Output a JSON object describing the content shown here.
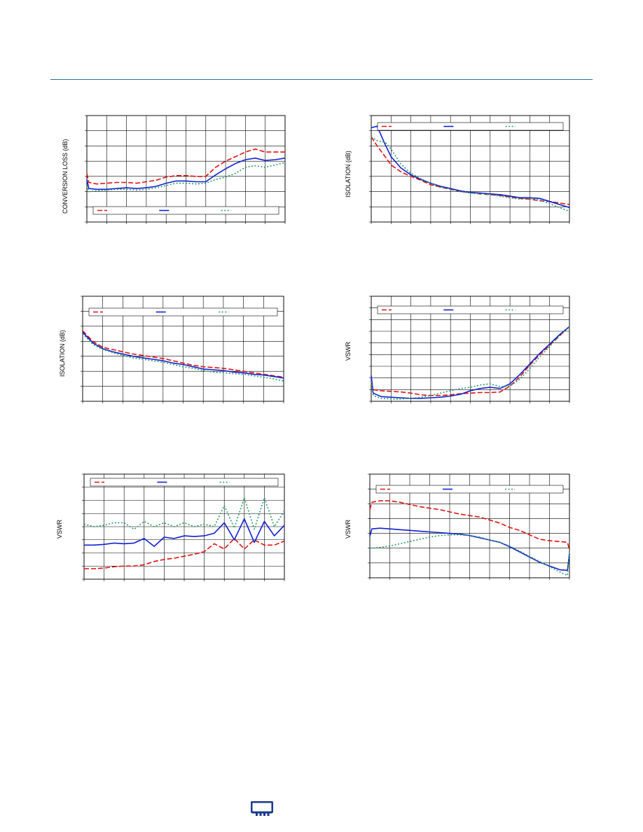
{
  "colors": {
    "rule": "#2b6e8f",
    "red": "#e01010",
    "blue": "#1020d0",
    "green": "#2a9a6a",
    "grid": "#000000",
    "logo": "#1a3a8c"
  },
  "footer": {
    "logo_icon": "chip-logo-icon"
  },
  "chart_data": [
    {
      "type": "line",
      "title": "",
      "ylabel": "CONVERSION LOSS (dB)",
      "xlabel": "",
      "xlim": [
        0,
        10
      ],
      "ylim": [
        0,
        7
      ],
      "grid": true,
      "legend_position": "bottom",
      "series": [
        {
          "style": "dash-red",
          "x": [
            0,
            0.1,
            0.5,
            1,
            1.5,
            2,
            2.5,
            3,
            3.5,
            4,
            4.5,
            5,
            5.5,
            6,
            6.5,
            7,
            7.5,
            8,
            8.5,
            9,
            9.5,
            10
          ],
          "y": [
            3.2,
            2.6,
            2.5,
            2.55,
            2.6,
            2.6,
            2.55,
            2.65,
            2.75,
            2.95,
            3.05,
            3.05,
            3.0,
            3.0,
            3.6,
            4.0,
            4.3,
            4.6,
            4.8,
            4.6,
            4.6,
            4.6
          ]
        },
        {
          "style": "solid-blue",
          "x": [
            0,
            0.1,
            0.5,
            1,
            1.5,
            2,
            2.5,
            3,
            3.5,
            4,
            4.5,
            5,
            5.5,
            6,
            6.5,
            7,
            7.5,
            8,
            8.5,
            9,
            9.5,
            10
          ],
          "y": [
            2.8,
            2.2,
            2.15,
            2.15,
            2.2,
            2.25,
            2.2,
            2.25,
            2.35,
            2.55,
            2.7,
            2.7,
            2.65,
            2.65,
            3.1,
            3.5,
            3.85,
            4.1,
            4.2,
            4.05,
            4.1,
            4.2
          ]
        },
        {
          "style": "dot-green",
          "x": [
            0,
            0.1,
            0.5,
            1,
            1.5,
            2,
            2.5,
            3,
            3.5,
            4,
            4.5,
            5,
            5.5,
            6,
            6.5,
            7,
            7.5,
            8,
            8.5,
            9,
            9.5,
            10
          ],
          "y": [
            2.4,
            2.0,
            2.05,
            2.1,
            2.15,
            2.15,
            2.1,
            2.15,
            2.25,
            2.4,
            2.55,
            2.55,
            2.5,
            2.55,
            2.8,
            2.95,
            3.2,
            3.6,
            3.7,
            3.6,
            3.75,
            3.9
          ]
        }
      ]
    },
    {
      "type": "line",
      "title": "",
      "ylabel": "ISOLATION (dB)",
      "xlabel": "",
      "xlim": [
        0,
        10
      ],
      "ylim": [
        0,
        7
      ],
      "grid": true,
      "legend_position": "top",
      "series": [
        {
          "style": "dash-red",
          "x": [
            0,
            0.3,
            0.7,
            1,
            1.5,
            2,
            2.5,
            3,
            3.5,
            4,
            4.5,
            5,
            5.5,
            6,
            6.5,
            7,
            7.5,
            8,
            8.5,
            9,
            9.5,
            10
          ],
          "y": [
            5.6,
            5.0,
            4.3,
            3.75,
            3.3,
            3.0,
            2.75,
            2.45,
            2.3,
            2.15,
            2.0,
            1.95,
            1.85,
            1.8,
            1.75,
            1.65,
            1.55,
            1.5,
            1.4,
            1.35,
            1.25,
            1.15
          ]
        },
        {
          "style": "solid-blue",
          "x": [
            0,
            0.3,
            0.7,
            1,
            1.5,
            2,
            2.5,
            3,
            3.5,
            4,
            4.5,
            5,
            5.5,
            6,
            6.5,
            7,
            7.5,
            8,
            8.5,
            9,
            9.5,
            10
          ],
          "y": [
            6.2,
            6.3,
            5.1,
            4.3,
            3.55,
            3.1,
            2.8,
            2.55,
            2.35,
            2.2,
            2.05,
            1.95,
            1.9,
            1.85,
            1.8,
            1.7,
            1.6,
            1.6,
            1.55,
            1.35,
            1.15,
            0.95
          ]
        },
        {
          "style": "dot-green",
          "x": [
            0,
            0.3,
            0.7,
            1,
            1.5,
            2,
            2.5,
            3,
            3.5,
            4,
            4.5,
            5,
            5.5,
            6,
            6.5,
            7,
            7.5,
            8,
            8.5,
            9,
            9.5,
            10
          ],
          "y": [
            5.6,
            5.35,
            5.25,
            4.8,
            3.8,
            3.2,
            2.85,
            2.55,
            2.3,
            2.15,
            2.0,
            1.9,
            1.85,
            1.8,
            1.7,
            1.6,
            1.5,
            1.55,
            1.45,
            1.2,
            0.95,
            0.7
          ]
        }
      ]
    },
    {
      "type": "line",
      "title": "",
      "ylabel": "ISOLATION (dB)",
      "xlabel": "",
      "xlim": [
        0,
        10
      ],
      "ylim": [
        0,
        7
      ],
      "grid": true,
      "legend_position": "top",
      "series": [
        {
          "style": "dash-red",
          "x": [
            0,
            0.5,
            1,
            1.5,
            2,
            2.5,
            3,
            3.5,
            4,
            4.5,
            5,
            5.5,
            6,
            6.5,
            7,
            7.5,
            8,
            8.5,
            9,
            9.5,
            10
          ],
          "y": [
            4.7,
            4.0,
            3.6,
            3.45,
            3.3,
            3.15,
            3.05,
            2.95,
            2.85,
            2.7,
            2.55,
            2.4,
            2.3,
            2.25,
            2.2,
            2.1,
            2.0,
            1.9,
            1.8,
            1.7,
            1.6
          ]
        },
        {
          "style": "solid-blue",
          "x": [
            0,
            0.5,
            1,
            1.5,
            2,
            2.5,
            3,
            3.5,
            4,
            4.5,
            5,
            5.5,
            6,
            6.5,
            7,
            7.5,
            8,
            8.5,
            9,
            9.5,
            10
          ],
          "y": [
            4.6,
            3.9,
            3.5,
            3.3,
            3.15,
            3.0,
            2.9,
            2.8,
            2.7,
            2.55,
            2.45,
            2.3,
            2.15,
            2.1,
            2.05,
            1.95,
            1.9,
            1.8,
            1.75,
            1.65,
            1.55
          ]
        },
        {
          "style": "dot-green",
          "x": [
            0,
            0.5,
            1,
            1.5,
            2,
            2.5,
            3,
            3.5,
            4,
            4.5,
            5,
            5.5,
            6,
            6.5,
            7,
            7.5,
            8,
            8.5,
            9,
            9.5,
            10
          ],
          "y": [
            4.5,
            3.8,
            3.45,
            3.25,
            3.05,
            2.9,
            2.8,
            2.7,
            2.6,
            2.45,
            2.3,
            2.2,
            2.05,
            1.95,
            1.9,
            1.85,
            1.8,
            1.7,
            1.6,
            1.5,
            1.35
          ]
        }
      ]
    },
    {
      "type": "line",
      "title": "",
      "ylabel": "VSWR",
      "xlabel": "",
      "xlim": [
        0,
        10
      ],
      "ylim": [
        0,
        9
      ],
      "grid": true,
      "legend_position": "top",
      "series": [
        {
          "style": "dash-red",
          "x": [
            0,
            0.1,
            0.5,
            1,
            1.5,
            2,
            2.5,
            3,
            3.5,
            4,
            4.5,
            5,
            5.5,
            6,
            6.5,
            7,
            7.5,
            8,
            8.5,
            9,
            9.5,
            10
          ],
          "y": [
            1.6,
            1.0,
            0.9,
            0.85,
            0.8,
            0.7,
            0.55,
            0.5,
            0.5,
            0.55,
            0.65,
            0.7,
            0.75,
            0.75,
            0.8,
            1.3,
            2.1,
            3.1,
            4.0,
            4.8,
            5.6,
            6.4
          ]
        },
        {
          "style": "solid-blue",
          "x": [
            0,
            0.1,
            0.5,
            1,
            1.5,
            2,
            2.5,
            3,
            3.5,
            4,
            4.5,
            5,
            5.5,
            6,
            6.5,
            7,
            7.5,
            8,
            8.5,
            9,
            9.5,
            10
          ],
          "y": [
            2.2,
            0.7,
            0.4,
            0.35,
            0.3,
            0.25,
            0.25,
            0.3,
            0.35,
            0.45,
            0.6,
            0.9,
            1.1,
            1.2,
            1.1,
            1.5,
            2.3,
            3.2,
            4.1,
            4.9,
            5.7,
            6.4
          ]
        },
        {
          "style": "dot-green",
          "x": [
            0,
            0.1,
            0.5,
            1,
            1.5,
            2,
            2.5,
            3,
            3.5,
            4,
            4.5,
            5,
            5.5,
            6,
            6.5,
            7,
            7.5,
            8,
            8.5,
            9,
            9.5,
            10
          ],
          "y": [
            1.7,
            0.5,
            0.25,
            0.2,
            0.2,
            0.25,
            0.35,
            0.5,
            0.7,
            0.9,
            1.1,
            1.2,
            1.4,
            1.5,
            1.25,
            1.3,
            1.9,
            2.8,
            3.8,
            4.7,
            5.6,
            6.4
          ]
        }
      ]
    },
    {
      "type": "line",
      "title": "",
      "ylabel": "VSWR",
      "xlabel": "",
      "xlim": [
        0,
        10
      ],
      "ylim": [
        0,
        8
      ],
      "grid": true,
      "legend_position": "top",
      "series": [
        {
          "style": "dash-red",
          "x": [
            0,
            0.5,
            1,
            1.5,
            2,
            2.5,
            3,
            3.5,
            4,
            4.5,
            5,
            5.5,
            6,
            6.5,
            7,
            7.5,
            8,
            8.5,
            9,
            9.5,
            10
          ],
          "y": [
            0.8,
            0.8,
            0.85,
            0.95,
            1.0,
            1.0,
            1.1,
            1.35,
            1.5,
            1.6,
            1.75,
            1.9,
            2.1,
            2.7,
            2.3,
            3.1,
            2.3,
            3.0,
            2.6,
            2.6,
            2.9
          ]
        },
        {
          "style": "solid-blue",
          "x": [
            0,
            0.5,
            1,
            1.5,
            2,
            2.5,
            3,
            3.5,
            4,
            4.5,
            5,
            5.5,
            6,
            6.5,
            7,
            7.5,
            8,
            8.5,
            9,
            9.5,
            10
          ],
          "y": [
            2.6,
            2.6,
            2.65,
            2.75,
            2.7,
            2.75,
            3.1,
            2.5,
            3.2,
            3.1,
            3.3,
            3.25,
            3.3,
            3.5,
            4.3,
            3.0,
            4.6,
            2.8,
            4.4,
            3.3,
            4.1
          ]
        },
        {
          "style": "dot-green",
          "x": [
            0,
            0.5,
            1,
            1.5,
            2,
            2.5,
            3,
            3.5,
            4,
            4.5,
            5,
            5.5,
            6,
            6.5,
            7,
            7.5,
            8,
            8.5,
            9,
            9.5,
            10
          ],
          "y": [
            4.2,
            4.0,
            4.1,
            4.3,
            4.3,
            3.8,
            4.4,
            4.0,
            4.3,
            4.0,
            4.3,
            4.0,
            4.2,
            4.0,
            5.6,
            3.9,
            6.2,
            3.8,
            6.2,
            4.0,
            5.2
          ]
        }
      ]
    },
    {
      "type": "line",
      "title": "",
      "ylabel": "VSWR",
      "xlabel": "",
      "xlim": [
        0,
        10
      ],
      "ylim": [
        0,
        7
      ],
      "grid": true,
      "legend_position": "top",
      "series": [
        {
          "style": "dash-red",
          "x": [
            0,
            0.1,
            0.5,
            1,
            1.5,
            2,
            2.5,
            3,
            3.5,
            4,
            4.5,
            5,
            5.5,
            6,
            6.5,
            7,
            7.5,
            8,
            8.5,
            9,
            9.5,
            9.9,
            10
          ],
          "y": [
            4.6,
            5.1,
            5.2,
            5.2,
            5.1,
            4.95,
            4.8,
            4.7,
            4.6,
            4.45,
            4.3,
            4.2,
            4.1,
            3.9,
            3.7,
            3.4,
            3.2,
            2.9,
            2.6,
            2.5,
            2.45,
            2.4,
            1.9
          ]
        },
        {
          "style": "solid-blue",
          "x": [
            0,
            0.1,
            0.5,
            1,
            1.5,
            2,
            2.5,
            3,
            3.5,
            4,
            4.5,
            5,
            5.5,
            6,
            6.5,
            7,
            7.5,
            8,
            8.5,
            9,
            9.5,
            9.9,
            10
          ],
          "y": [
            2.8,
            3.3,
            3.35,
            3.3,
            3.25,
            3.2,
            3.15,
            3.1,
            3.05,
            3.0,
            2.95,
            2.85,
            2.7,
            2.55,
            2.4,
            2.1,
            1.75,
            1.4,
            1.05,
            0.8,
            0.55,
            0.5,
            1.6
          ]
        },
        {
          "style": "dot-green",
          "x": [
            0,
            0.1,
            0.5,
            1,
            1.5,
            2,
            2.5,
            3,
            3.5,
            4,
            4.5,
            5,
            5.5,
            6,
            6.5,
            7,
            7.5,
            8,
            8.5,
            9,
            9.5,
            9.9,
            10
          ],
          "y": [
            2.0,
            2.0,
            2.05,
            2.15,
            2.3,
            2.45,
            2.6,
            2.75,
            2.85,
            2.9,
            2.9,
            2.85,
            2.75,
            2.55,
            2.4,
            2.15,
            1.8,
            1.45,
            1.1,
            0.75,
            0.4,
            0.15,
            1.9
          ]
        }
      ]
    }
  ]
}
